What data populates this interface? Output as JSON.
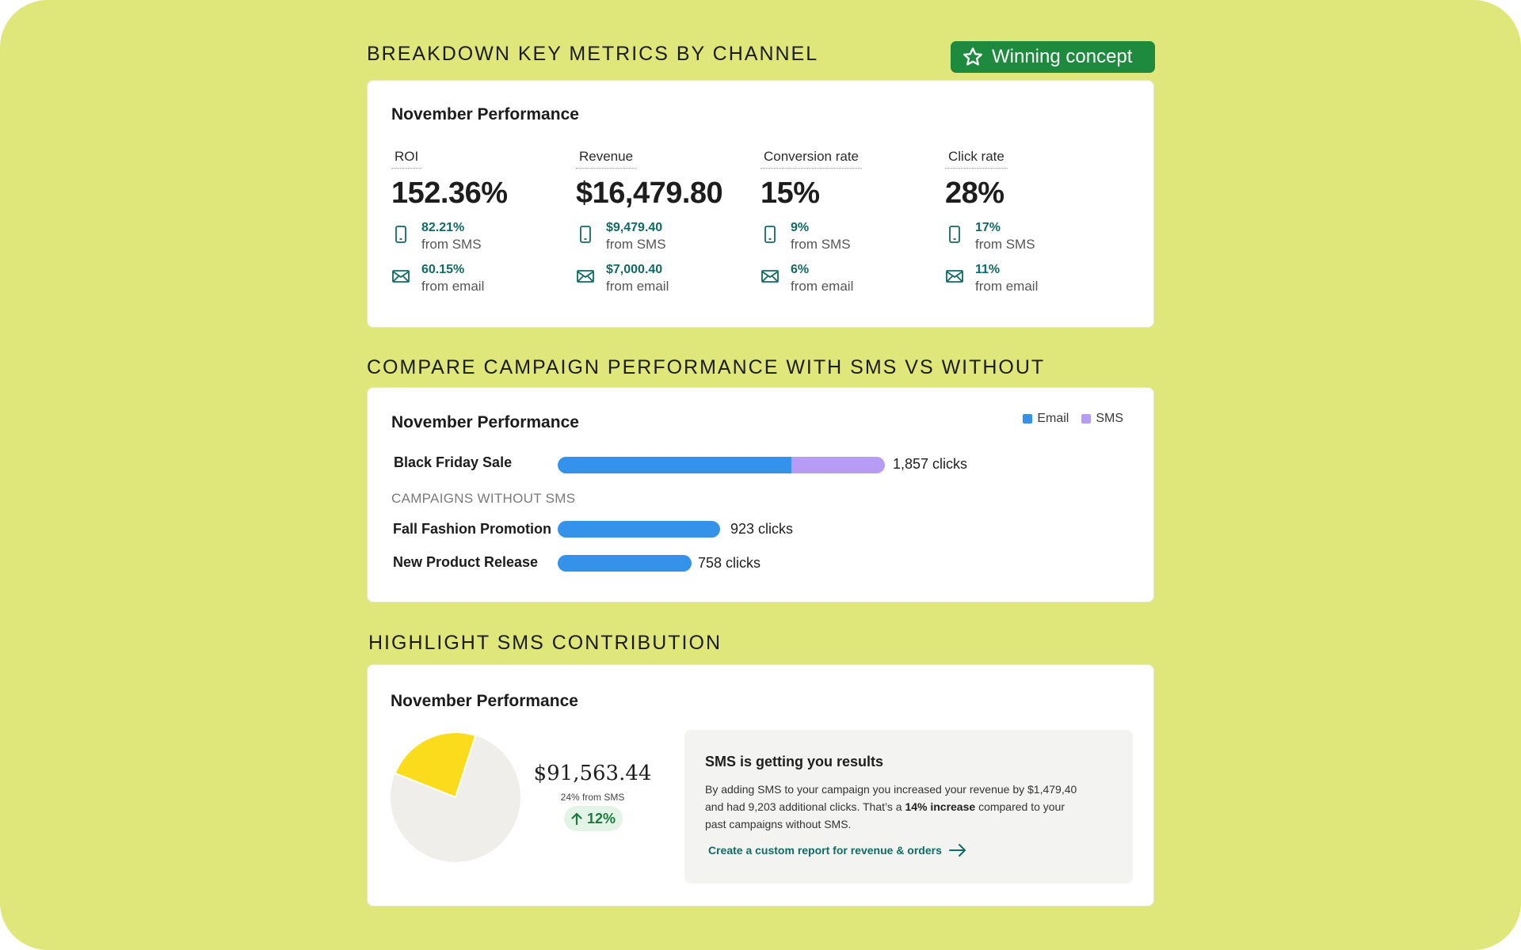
{
  "badge": {
    "label": "Winning concept",
    "icon": "star-icon",
    "color": "#1d8a3d"
  },
  "sections": {
    "breakdown": "BREAKDOWN KEY METRICS BY CHANNEL",
    "compare": "COMPARE CAMPAIGN PERFORMANCE WITH SMS VS WITHOUT",
    "highlight": "HIGHLIGHT SMS CONTRIBUTION"
  },
  "metrics_card": {
    "title": "November Performance",
    "metrics": [
      {
        "label": "ROI",
        "value": "152.36%",
        "sms_value": "82.21%",
        "sms_text": "from SMS",
        "email_value": "60.15%",
        "email_text": "from email"
      },
      {
        "label": "Revenue",
        "value": "$16,479.80",
        "sms_value": "$9,479.40",
        "sms_text": "from SMS",
        "email_value": "$7,000.40",
        "email_text": "from email"
      },
      {
        "label": "Conversion rate",
        "value": "15%",
        "sms_value": "9%",
        "sms_text": "from SMS",
        "email_value": "6%",
        "email_text": "from email"
      },
      {
        "label": "Click rate",
        "value": "28%",
        "sms_value": "17%",
        "sms_text": "from SMS",
        "email_value": "11%",
        "email_text": "from email"
      }
    ]
  },
  "compare_card": {
    "title": "November Performance",
    "legend": [
      {
        "label": "Email",
        "color": "#3592ea"
      },
      {
        "label": "SMS",
        "color": "#b69cf5"
      }
    ],
    "subheading": "CAMPAIGNS WITHOUT SMS",
    "campaigns": [
      {
        "name": "Black Friday Sale",
        "total_clicks": 1857,
        "email_share": 0.714,
        "clicks_label": "1,857 clicks"
      },
      {
        "name": "Fall Fashion Promotion",
        "total_clicks": 923,
        "email_share": 1.0,
        "clicks_label": "923 clicks"
      },
      {
        "name": "New Product Release",
        "total_clicks": 758,
        "email_share": 1.0,
        "clicks_label": "758 clicks"
      }
    ]
  },
  "contribution_card": {
    "title": "November Performance",
    "amount": "$91,563.44",
    "amount_sub": "24% from SMS",
    "sms_share_percent": 24,
    "pie_colors": {
      "sms": "#fbdc1d",
      "rest": "#efeeea"
    },
    "delta": "12%",
    "info_title": "SMS is getting you results",
    "info_body_pre": "By adding SMS to your campaign you increased your revenue by $1,479,40 and had 9,203 additional clicks. That’s a",
    "info_body_bold": "14% increase",
    "info_body_post": "compared to your past campaigns without SMS.",
    "link_label": "Create a custom report for revenue & orders"
  }
}
